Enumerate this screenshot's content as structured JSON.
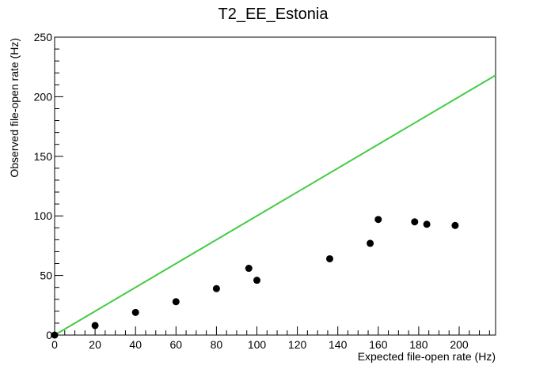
{
  "chart_data": {
    "type": "scatter",
    "title": "T2_EE_Estonia",
    "xlabel": "Expected file-open rate (Hz)",
    "ylabel": "Observed file-open rate (Hz)",
    "xlim": [
      0,
      218
    ],
    "ylim": [
      0,
      250
    ],
    "xticks": [
      0,
      20,
      40,
      60,
      80,
      100,
      120,
      140,
      160,
      180,
      200
    ],
    "yticks": [
      0,
      50,
      100,
      150,
      200,
      250
    ],
    "grid": false,
    "series": [
      {
        "type": "scatter",
        "color": "#000000",
        "points": [
          {
            "x": 0,
            "y": 0
          },
          {
            "x": 20,
            "y": 8
          },
          {
            "x": 40,
            "y": 19
          },
          {
            "x": 60,
            "y": 28
          },
          {
            "x": 80,
            "y": 39
          },
          {
            "x": 96,
            "y": 56
          },
          {
            "x": 100,
            "y": 46
          },
          {
            "x": 136,
            "y": 64
          },
          {
            "x": 156,
            "y": 77
          },
          {
            "x": 160,
            "y": 97
          },
          {
            "x": 178,
            "y": 95
          },
          {
            "x": 184,
            "y": 93
          },
          {
            "x": 198,
            "y": 92
          }
        ]
      },
      {
        "type": "line",
        "color": "#44cc44",
        "points": [
          {
            "x": 0,
            "y": 0
          },
          {
            "x": 218,
            "y": 218
          }
        ]
      }
    ]
  }
}
